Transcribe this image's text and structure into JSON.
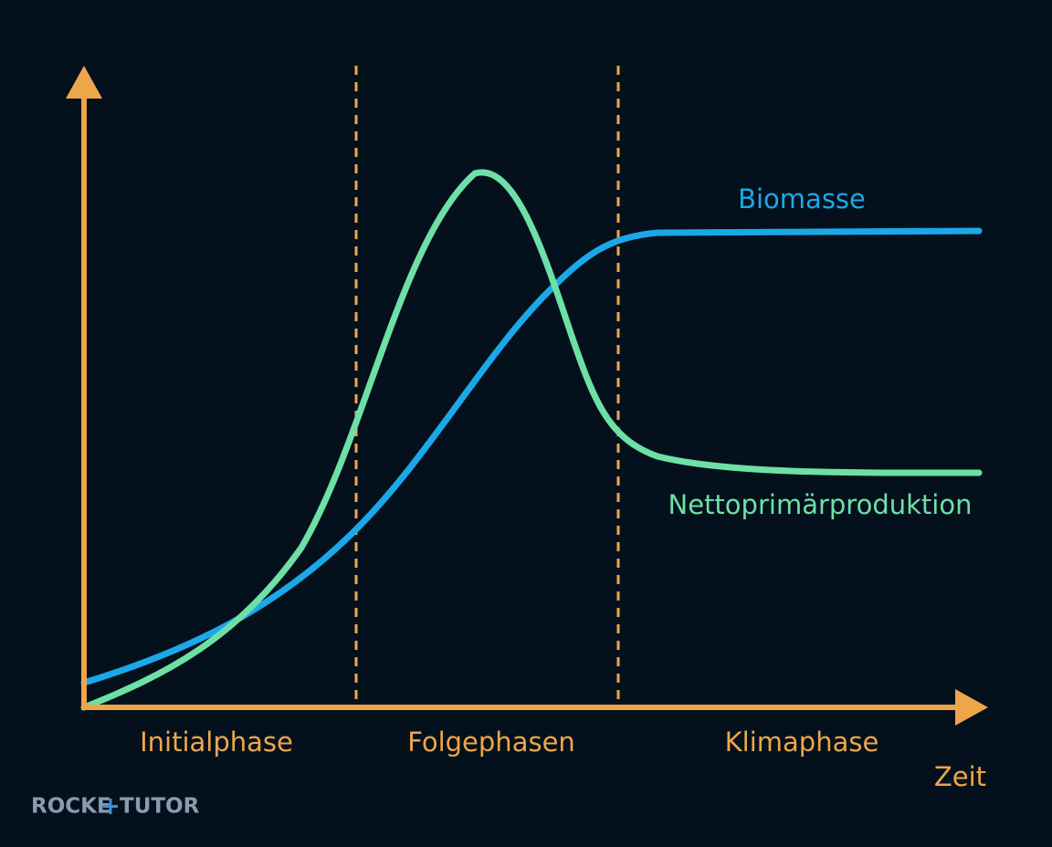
{
  "curves": {
    "biomass": "Biomasse",
    "net_primary_production": "Nettoprimärproduktion"
  },
  "phases": [
    "Initialphase",
    "Folgephasen",
    "Klimaphase"
  ],
  "x_axis_label": "Zeit",
  "logo": {
    "left": "ROCKE",
    "right": "TUTOR"
  }
}
